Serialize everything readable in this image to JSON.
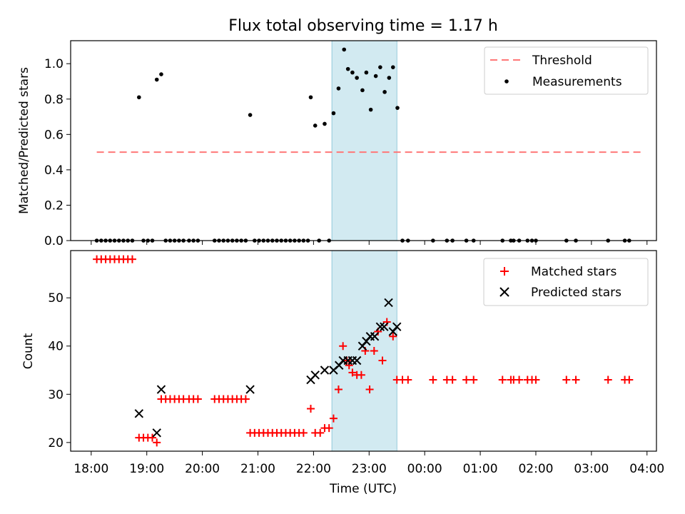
{
  "title": "Flux total observing time = 1.17 h",
  "xlabel": "Time (UTC)",
  "x_ticks": [
    "18:00",
    "19:00",
    "20:00",
    "21:00",
    "22:00",
    "23:00",
    "00:00",
    "01:00",
    "02:00",
    "03:00",
    "04:00"
  ],
  "colors": {
    "threshold": "#ff7777",
    "measurement": "#000000",
    "matched": "#ff0000",
    "predicted": "#000000",
    "highlight": "#add8e6"
  },
  "chart_data": [
    {
      "type": "scatter",
      "ylabel": "Matched/Predicted stars",
      "xlim_hours": [
        17.63,
        28.17
      ],
      "ylim": [
        0,
        1.13
      ],
      "y_ticks": [
        "0.0",
        "0.2",
        "0.4",
        "0.6",
        "0.8",
        "1.0"
      ],
      "highlight_span_hours": [
        22.33,
        23.5
      ],
      "legend": {
        "placement": "top-right",
        "entries": [
          "Threshold",
          "Measurements"
        ]
      },
      "threshold": {
        "name": "Threshold",
        "y": 0.5,
        "x_hours": [
          18.1,
          27.9
        ]
      },
      "series": [
        {
          "name": "Measurements",
          "points": [
            [
              18.1,
              0
            ],
            [
              18.18,
              0
            ],
            [
              18.26,
              0
            ],
            [
              18.34,
              0
            ],
            [
              18.42,
              0
            ],
            [
              18.5,
              0
            ],
            [
              18.58,
              0
            ],
            [
              18.66,
              0
            ],
            [
              18.74,
              0
            ],
            [
              18.86,
              0.81
            ],
            [
              18.94,
              0
            ],
            [
              19.02,
              0
            ],
            [
              19.1,
              0
            ],
            [
              19.18,
              0.91
            ],
            [
              19.26,
              0.94
            ],
            [
              19.34,
              0
            ],
            [
              19.42,
              0
            ],
            [
              19.5,
              0
            ],
            [
              19.58,
              0
            ],
            [
              19.66,
              0
            ],
            [
              19.76,
              0
            ],
            [
              19.84,
              0
            ],
            [
              19.92,
              0
            ],
            [
              20.22,
              0
            ],
            [
              20.3,
              0
            ],
            [
              20.38,
              0
            ],
            [
              20.46,
              0
            ],
            [
              20.54,
              0
            ],
            [
              20.62,
              0
            ],
            [
              20.7,
              0
            ],
            [
              20.78,
              0
            ],
            [
              20.86,
              0.71
            ],
            [
              20.94,
              0
            ],
            [
              21.02,
              0
            ],
            [
              21.1,
              0
            ],
            [
              21.18,
              0
            ],
            [
              21.26,
              0
            ],
            [
              21.34,
              0
            ],
            [
              21.42,
              0
            ],
            [
              21.5,
              0
            ],
            [
              21.58,
              0
            ],
            [
              21.66,
              0
            ],
            [
              21.74,
              0
            ],
            [
              21.82,
              0
            ],
            [
              21.9,
              0
            ],
            [
              21.95,
              0.81
            ],
            [
              22.03,
              0.65
            ],
            [
              22.1,
              0
            ],
            [
              22.2,
              0.66
            ],
            [
              22.28,
              0
            ],
            [
              22.36,
              0.72
            ],
            [
              22.45,
              0.86
            ],
            [
              22.55,
              1.08
            ],
            [
              22.62,
              0.97
            ],
            [
              22.7,
              0.95
            ],
            [
              22.78,
              0.92
            ],
            [
              22.88,
              0.85
            ],
            [
              22.95,
              0.95
            ],
            [
              23.03,
              0.74
            ],
            [
              23.12,
              0.93
            ],
            [
              23.2,
              0.98
            ],
            [
              23.28,
              0.84
            ],
            [
              23.36,
              0.92
            ],
            [
              23.43,
              0.98
            ],
            [
              23.51,
              0.75
            ],
            [
              23.6,
              0
            ],
            [
              23.7,
              0
            ],
            [
              24.15,
              0
            ],
            [
              24.4,
              0
            ],
            [
              24.5,
              0
            ],
            [
              24.75,
              0
            ],
            [
              24.88,
              0
            ],
            [
              25.4,
              0
            ],
            [
              25.55,
              0
            ],
            [
              25.6,
              0
            ],
            [
              25.7,
              0
            ],
            [
              25.85,
              0
            ],
            [
              25.93,
              0
            ],
            [
              26.0,
              0
            ],
            [
              26.55,
              0
            ],
            [
              26.72,
              0
            ],
            [
              27.3,
              0
            ],
            [
              27.6,
              0
            ],
            [
              27.68,
              0
            ]
          ]
        }
      ]
    },
    {
      "type": "scatter",
      "ylabel": "Count",
      "xlim_hours": [
        17.63,
        28.17
      ],
      "ylim": [
        18.2,
        59.8
      ],
      "y_ticks": [
        "20",
        "30",
        "40",
        "50"
      ],
      "highlight_span_hours": [
        22.33,
        23.5
      ],
      "legend": {
        "placement": "top-right",
        "entries": [
          "Matched stars",
          "Predicted stars"
        ]
      },
      "series": [
        {
          "name": "Matched stars",
          "marker": "+",
          "points": [
            [
              18.1,
              58
            ],
            [
              18.18,
              58
            ],
            [
              18.26,
              58
            ],
            [
              18.34,
              58
            ],
            [
              18.42,
              58
            ],
            [
              18.5,
              58
            ],
            [
              18.58,
              58
            ],
            [
              18.66,
              58
            ],
            [
              18.74,
              58
            ],
            [
              18.86,
              21
            ],
            [
              18.94,
              21
            ],
            [
              19.02,
              21
            ],
            [
              19.1,
              21
            ],
            [
              19.18,
              20
            ],
            [
              19.26,
              29
            ],
            [
              19.34,
              29
            ],
            [
              19.42,
              29
            ],
            [
              19.5,
              29
            ],
            [
              19.58,
              29
            ],
            [
              19.66,
              29
            ],
            [
              19.76,
              29
            ],
            [
              19.84,
              29
            ],
            [
              19.92,
              29
            ],
            [
              20.22,
              29
            ],
            [
              20.3,
              29
            ],
            [
              20.38,
              29
            ],
            [
              20.46,
              29
            ],
            [
              20.54,
              29
            ],
            [
              20.62,
              29
            ],
            [
              20.7,
              29
            ],
            [
              20.78,
              29
            ],
            [
              20.86,
              22
            ],
            [
              20.94,
              22
            ],
            [
              21.02,
              22
            ],
            [
              21.1,
              22
            ],
            [
              21.18,
              22
            ],
            [
              21.26,
              22
            ],
            [
              21.34,
              22
            ],
            [
              21.42,
              22
            ],
            [
              21.5,
              22
            ],
            [
              21.58,
              22
            ],
            [
              21.66,
              22
            ],
            [
              21.74,
              22
            ],
            [
              21.82,
              22
            ],
            [
              21.95,
              27
            ],
            [
              22.03,
              22
            ],
            [
              22.12,
              22
            ],
            [
              22.2,
              23
            ],
            [
              22.28,
              23
            ],
            [
              22.36,
              25
            ],
            [
              22.45,
              31
            ],
            [
              22.53,
              40
            ],
            [
              22.6,
              37
            ],
            [
              22.64,
              36
            ],
            [
              22.7,
              34.5
            ],
            [
              22.78,
              34
            ],
            [
              22.86,
              34
            ],
            [
              22.93,
              39
            ],
            [
              23.01,
              31
            ],
            [
              23.09,
              39
            ],
            [
              23.16,
              43
            ],
            [
              23.24,
              37
            ],
            [
              23.32,
              45
            ],
            [
              23.43,
              42
            ],
            [
              23.5,
              33
            ],
            [
              23.6,
              33
            ],
            [
              23.7,
              33
            ],
            [
              24.15,
              33
            ],
            [
              24.4,
              33
            ],
            [
              24.5,
              33
            ],
            [
              24.75,
              33
            ],
            [
              24.88,
              33
            ],
            [
              25.4,
              33
            ],
            [
              25.55,
              33
            ],
            [
              25.6,
              33
            ],
            [
              25.7,
              33
            ],
            [
              25.85,
              33
            ],
            [
              25.93,
              33
            ],
            [
              26.0,
              33
            ],
            [
              26.55,
              33
            ],
            [
              26.72,
              33
            ],
            [
              27.3,
              33
            ],
            [
              27.6,
              33
            ],
            [
              27.68,
              33
            ]
          ]
        },
        {
          "name": "Predicted stars",
          "marker": "x",
          "points": [
            [
              18.86,
              26
            ],
            [
              19.18,
              22
            ],
            [
              19.26,
              31
            ],
            [
              20.86,
              31
            ],
            [
              21.95,
              33
            ],
            [
              22.03,
              34
            ],
            [
              22.2,
              35
            ],
            [
              22.36,
              35
            ],
            [
              22.46,
              36
            ],
            [
              22.53,
              37
            ],
            [
              22.62,
              37
            ],
            [
              22.7,
              37
            ],
            [
              22.78,
              37
            ],
            [
              22.88,
              40
            ],
            [
              22.95,
              41
            ],
            [
              23.02,
              42
            ],
            [
              23.1,
              42
            ],
            [
              23.2,
              44
            ],
            [
              23.27,
              44
            ],
            [
              23.35,
              49
            ],
            [
              23.43,
              43
            ],
            [
              23.5,
              44
            ]
          ]
        }
      ]
    }
  ]
}
